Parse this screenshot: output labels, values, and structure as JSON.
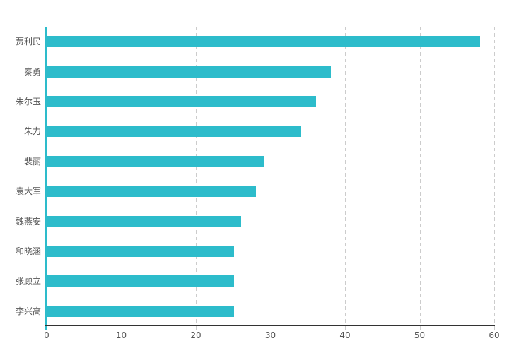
{
  "chart_data": {
    "type": "bar",
    "orientation": "horizontal",
    "title": "",
    "xlabel": "",
    "ylabel": "",
    "xlim": [
      0,
      60
    ],
    "x_ticks": [
      0,
      10,
      20,
      30,
      40,
      50,
      60
    ],
    "grid": "vertical-dashed",
    "legend": "none",
    "categories": [
      "贾利民",
      "秦勇",
      "朱尔玉",
      "朱力",
      "裴丽",
      "袁大军",
      "魏燕安",
      "和晓涵",
      "张顾立",
      "李兴高"
    ],
    "values": [
      58,
      38,
      36,
      34,
      29,
      28,
      26,
      25,
      25,
      25
    ]
  },
  "colors": {
    "bar": "#2DBCCB",
    "y_axis_line": "#2DBCCB",
    "x_axis_line": "#333333",
    "gridline": "#cccccc",
    "axis_label": "#555555",
    "background": "#ffffff"
  }
}
